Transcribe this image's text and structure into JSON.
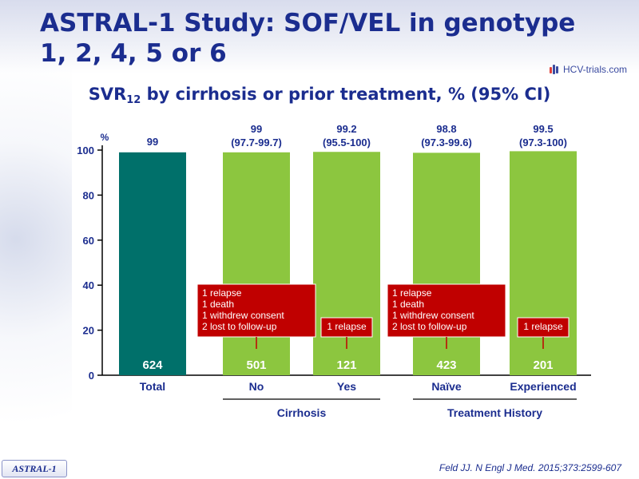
{
  "slide": {
    "title": "ASTRAL-1 Study: SOF/VEL in genotype 1, 2, 4, 5 or 6",
    "logo_text": "HCV-trials.com",
    "footer_tag": "ASTRAL-1",
    "footer_ref": "Feld JJ. N Engl J Med. 2015;373:2599-607"
  },
  "chart_data": {
    "type": "bar",
    "title_main": "SVR",
    "title_sub": "12",
    "title_rest": " by cirrhosis or prior treatment, % (95% CI)",
    "ylabel": "%",
    "ylim": [
      0,
      100
    ],
    "yticks": [
      0,
      20,
      40,
      60,
      80,
      100
    ],
    "grid": false,
    "categories": [
      "Total",
      "No",
      "Yes",
      "Naïve",
      "Experienced"
    ],
    "values": [
      99,
      99,
      99.2,
      98.8,
      99.5
    ],
    "value_labels": [
      "99",
      "99",
      "99.2",
      "98.8",
      "99.5"
    ],
    "ci_labels": [
      "",
      "(97.7-99.7)",
      "(95.5-100)",
      "(97.3-99.6)",
      "(97.3-100)"
    ],
    "n": [
      "624",
      "501",
      "121",
      "423",
      "201"
    ],
    "bar_colors": [
      "#00706a",
      "#8cc63f",
      "#8cc63f",
      "#8cc63f",
      "#8cc63f"
    ],
    "groups": [
      {
        "label": "Cirrhosis",
        "bars": [
          1,
          2
        ]
      },
      {
        "label": "Treatment History",
        "bars": [
          3,
          4
        ]
      }
    ],
    "annotations": [
      {
        "bar": 1,
        "lines": [
          "1 relapse",
          "1 death",
          "1 withdrew consent",
          "2 lost to follow-up"
        ]
      },
      {
        "bar": 2,
        "lines": [
          "1 relapse"
        ]
      },
      {
        "bar": 3,
        "lines": [
          "1 relapse",
          "1 death",
          "1 withdrew consent",
          "2 lost to follow-up"
        ]
      },
      {
        "bar": 4,
        "lines": [
          "1 relapse"
        ]
      }
    ],
    "colors": {
      "title": "#1b2d8f",
      "label": "#1b2d8f",
      "axis": "#000000",
      "annotation_bg": "#c00000",
      "annotation_text": "#ffffff"
    }
  }
}
